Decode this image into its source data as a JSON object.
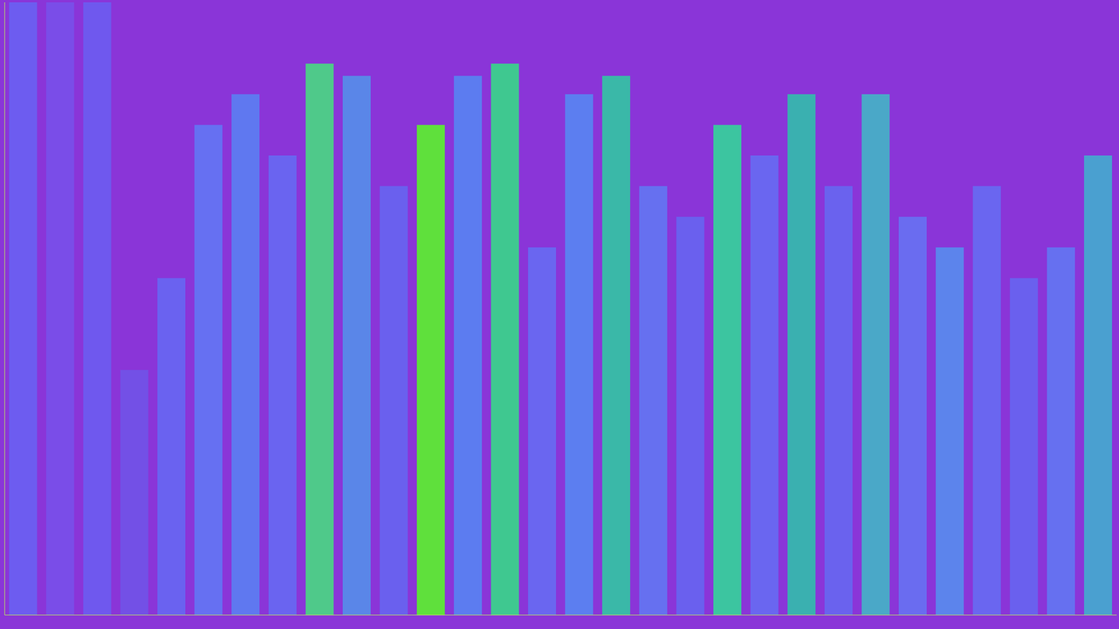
{
  "chart_data": {
    "type": "bar",
    "categories": [
      null,
      null,
      null,
      null,
      null,
      null,
      null,
      null,
      null,
      null,
      null,
      null,
      null,
      null,
      null,
      null,
      null,
      null,
      null,
      null,
      null,
      null,
      null,
      null,
      null,
      null,
      null,
      null,
      null,
      null
    ],
    "values": [
      100,
      100,
      100,
      40,
      55,
      80,
      85,
      75,
      90,
      88,
      70,
      80,
      88,
      90,
      60,
      85,
      88,
      70,
      65,
      80,
      75,
      85,
      70,
      85,
      65,
      60,
      70,
      55,
      60,
      75
    ],
    "colors": [
      "#6d5cf0",
      "#7a4de8",
      "#6f58ee",
      "#7350e6",
      "#6a62f0",
      "#6670f2",
      "#5f78f0",
      "#6a64f0",
      "#4fc98a",
      "#5a86e8",
      "#6a60ee",
      "#5fe03c",
      "#5c7cf0",
      "#3fc890",
      "#6a66f0",
      "#5c7ef0",
      "#3ab8a8",
      "#6670f0",
      "#6a60ee",
      "#3cc5a0",
      "#6a66f0",
      "#3ab0b0",
      "#6a62ee",
      "#4aa8c8",
      "#6a6cf0",
      "#5c84ec",
      "#6a66f0",
      "#6a60ee",
      "#6670f0",
      "#4aa0d0"
    ],
    "ylim": [
      0,
      100
    ],
    "grid": false,
    "tick_labels": false
  }
}
